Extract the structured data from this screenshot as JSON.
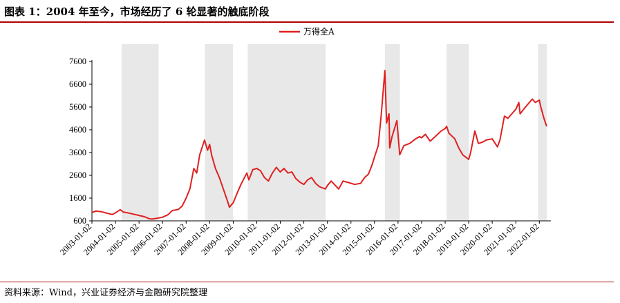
{
  "title": "图表 1：2004 年至今，市场经历了 6 轮显著的触底阶段",
  "source": "资料来源：Wind，兴业证券经济与金融研究院整理",
  "colors": {
    "line": "#e02020",
    "shade": "#e8e8e8",
    "rule": "#b00000"
  },
  "chart_data": {
    "type": "line",
    "title": "",
    "xlabel": "",
    "ylabel": "",
    "ylim": [
      600,
      7600
    ],
    "yticks": [
      600,
      1600,
      2600,
      3600,
      4600,
      5600,
      6600,
      7600
    ],
    "xlim": [
      "2003-01-02",
      "2022-06-30"
    ],
    "xticks": [
      "2003-01-02",
      "2004-01-02",
      "2005-01-02",
      "2006-01-02",
      "2007-01-02",
      "2008-01-02",
      "2009-01-02",
      "2010-01-02",
      "2011-01-02",
      "2012-01-02",
      "2013-01-02",
      "2014-01-02",
      "2015-01-02",
      "2016-01-02",
      "2017-01-02",
      "2018-01-02",
      "2019-01-02",
      "2020-01-02",
      "2021-01-02",
      "2022-01-02"
    ],
    "legend_position": "top-center",
    "grid": false,
    "series": [
      {
        "name": "万得全A",
        "points": [
          [
            "2003-01-02",
            960
          ],
          [
            "2003-03-01",
            1030
          ],
          [
            "2003-06-01",
            1000
          ],
          [
            "2003-09-01",
            930
          ],
          [
            "2003-11-15",
            880
          ],
          [
            "2004-01-02",
            950
          ],
          [
            "2004-03-15",
            1090
          ],
          [
            "2004-05-01",
            990
          ],
          [
            "2004-08-01",
            940
          ],
          [
            "2004-11-01",
            880
          ],
          [
            "2005-01-02",
            840
          ],
          [
            "2005-04-01",
            780
          ],
          [
            "2005-06-01",
            700
          ],
          [
            "2005-07-15",
            680
          ],
          [
            "2005-10-01",
            710
          ],
          [
            "2006-01-02",
            760
          ],
          [
            "2006-04-01",
            880
          ],
          [
            "2006-06-01",
            1050
          ],
          [
            "2006-09-01",
            1100
          ],
          [
            "2006-11-01",
            1250
          ],
          [
            "2007-01-02",
            1600
          ],
          [
            "2007-03-01",
            2000
          ],
          [
            "2007-05-01",
            2900
          ],
          [
            "2007-06-15",
            2700
          ],
          [
            "2007-08-01",
            3500
          ],
          [
            "2007-10-15",
            4150
          ],
          [
            "2007-12-01",
            3700
          ],
          [
            "2008-01-02",
            3950
          ],
          [
            "2008-02-01",
            3500
          ],
          [
            "2008-04-01",
            2900
          ],
          [
            "2008-06-01",
            2500
          ],
          [
            "2008-08-01",
            2000
          ],
          [
            "2008-10-01",
            1500
          ],
          [
            "2008-11-04",
            1200
          ],
          [
            "2009-01-02",
            1400
          ],
          [
            "2009-03-01",
            1800
          ],
          [
            "2009-05-01",
            2200
          ],
          [
            "2009-08-01",
            2700
          ],
          [
            "2009-09-01",
            2400
          ],
          [
            "2009-11-01",
            2850
          ],
          [
            "2010-01-02",
            2900
          ],
          [
            "2010-03-01",
            2800
          ],
          [
            "2010-05-01",
            2500
          ],
          [
            "2010-07-01",
            2350
          ],
          [
            "2010-09-01",
            2700
          ],
          [
            "2010-11-01",
            2950
          ],
          [
            "2011-01-02",
            2750
          ],
          [
            "2011-03-01",
            2900
          ],
          [
            "2011-05-01",
            2700
          ],
          [
            "2011-07-01",
            2750
          ],
          [
            "2011-09-01",
            2450
          ],
          [
            "2011-11-01",
            2300
          ],
          [
            "2012-01-02",
            2200
          ],
          [
            "2012-03-01",
            2400
          ],
          [
            "2012-05-01",
            2500
          ],
          [
            "2012-07-01",
            2250
          ],
          [
            "2012-09-01",
            2100
          ],
          [
            "2012-12-01",
            2000
          ],
          [
            "2013-01-02",
            2150
          ],
          [
            "2013-03-01",
            2350
          ],
          [
            "2013-06-25",
            2000
          ],
          [
            "2013-09-01",
            2350
          ],
          [
            "2013-11-01",
            2300
          ],
          [
            "2014-01-02",
            2250
          ],
          [
            "2014-03-01",
            2200
          ],
          [
            "2014-06-01",
            2250
          ],
          [
            "2014-08-01",
            2500
          ],
          [
            "2014-10-01",
            2650
          ],
          [
            "2014-12-01",
            3100
          ],
          [
            "2015-01-02",
            3400
          ],
          [
            "2015-03-01",
            3900
          ],
          [
            "2015-04-15",
            5200
          ],
          [
            "2015-06-12",
            7200
          ],
          [
            "2015-07-08",
            4900
          ],
          [
            "2015-08-15",
            5300
          ],
          [
            "2015-08-26",
            3800
          ],
          [
            "2015-10-01",
            4300
          ],
          [
            "2015-12-15",
            5000
          ],
          [
            "2016-01-28",
            3500
          ],
          [
            "2016-04-01",
            3900
          ],
          [
            "2016-07-01",
            4000
          ],
          [
            "2016-10-01",
            4200
          ],
          [
            "2016-12-01",
            4300
          ],
          [
            "2017-01-02",
            4250
          ],
          [
            "2017-03-01",
            4400
          ],
          [
            "2017-05-15",
            4100
          ],
          [
            "2017-08-01",
            4300
          ],
          [
            "2017-11-01",
            4550
          ],
          [
            "2018-01-02",
            4650
          ],
          [
            "2018-01-25",
            4750
          ],
          [
            "2018-03-01",
            4450
          ],
          [
            "2018-06-01",
            4200
          ],
          [
            "2018-08-01",
            3800
          ],
          [
            "2018-10-01",
            3500
          ],
          [
            "2019-01-02",
            3300
          ],
          [
            "2019-02-01",
            3600
          ],
          [
            "2019-04-08",
            4550
          ],
          [
            "2019-06-01",
            4000
          ],
          [
            "2019-08-01",
            4050
          ],
          [
            "2019-10-01",
            4150
          ],
          [
            "2020-01-02",
            4200
          ],
          [
            "2020-03-23",
            3850
          ],
          [
            "2020-05-01",
            4150
          ],
          [
            "2020-07-10",
            5200
          ],
          [
            "2020-09-01",
            5100
          ],
          [
            "2020-12-01",
            5400
          ],
          [
            "2021-01-02",
            5500
          ],
          [
            "2021-02-18",
            5800
          ],
          [
            "2021-03-10",
            5300
          ],
          [
            "2021-06-01",
            5600
          ],
          [
            "2021-09-15",
            5950
          ],
          [
            "2021-11-01",
            5800
          ],
          [
            "2022-01-02",
            5900
          ],
          [
            "2022-01-20",
            5650
          ],
          [
            "2022-03-15",
            5100
          ],
          [
            "2022-04-26",
            4750
          ]
        ]
      }
    ],
    "shaded_periods": [
      [
        "2004-04-07",
        "2005-11-01"
      ],
      [
        "2007-10-20",
        "2008-12-30"
      ],
      [
        "2009-08-15",
        "2012-12-05"
      ],
      [
        "2015-06-12",
        "2016-01-31"
      ],
      [
        "2018-01-24",
        "2019-01-04"
      ],
      [
        "2021-12-13",
        "2022-04-27"
      ]
    ]
  }
}
